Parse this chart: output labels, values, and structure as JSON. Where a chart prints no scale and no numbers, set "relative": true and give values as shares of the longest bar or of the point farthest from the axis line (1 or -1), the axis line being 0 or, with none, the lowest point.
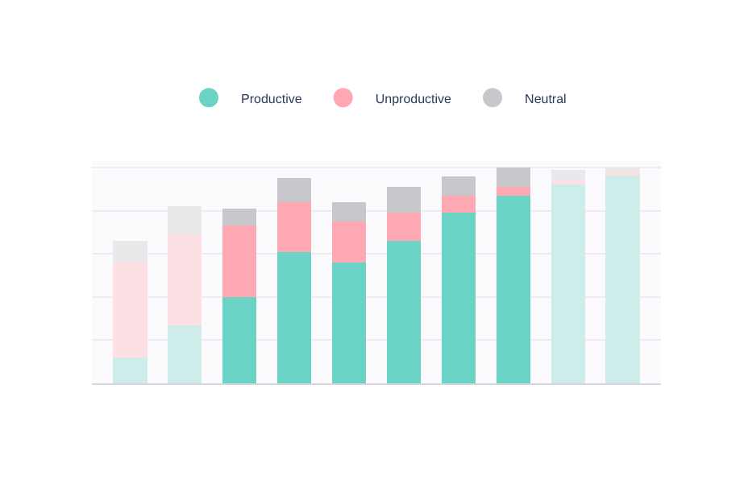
{
  "chart_data": {
    "type": "bar",
    "stacked": true,
    "relative": true,
    "grid": "y",
    "legend": "top",
    "categories": [
      null,
      null,
      null,
      null,
      null,
      null,
      null,
      null,
      null,
      null
    ],
    "series": [
      {
        "name": "Productive",
        "color": "#6bd2c6",
        "colors": [
          "#cdecea",
          "#cdecea",
          "#6bd2c6",
          "#6bd2c6",
          "#6bd2c6",
          "#6bd2c6",
          "#6bd2c6",
          "#6bd2c6",
          "#cdecea",
          "#cdecea"
        ],
        "values": [
          0.12,
          0.27,
          0.4,
          0.61,
          0.56,
          0.66,
          0.79,
          0.87,
          0.92,
          0.97
        ]
      },
      {
        "name": "Unproductive",
        "color": "#fda8b3",
        "colors": [
          "#fde0e4",
          "#fde0e4",
          "#fda8b3",
          "#fda8b3",
          "#fda8b3",
          "#fda8b3",
          "#fda8b3",
          "#fda8b3",
          "#fde0e4",
          "#fde0e4"
        ],
        "values": [
          0.44,
          0.42,
          0.33,
          0.23,
          0.19,
          0.13,
          0.08,
          0.04,
          0.02,
          0.01
        ]
      },
      {
        "name": "Neutral",
        "color": "#c8c7cc",
        "colors": [
          "#e9e8ea",
          "#e9e8ea",
          "#c8c7cc",
          "#c8c7cc",
          "#c8c7cc",
          "#c8c7cc",
          "#c8c7cc",
          "#c8c7cc",
          "#e9e8ea",
          "#e9e8ea"
        ],
        "values": [
          0.1,
          0.13,
          0.08,
          0.11,
          0.09,
          0.12,
          0.09,
          0.09,
          0.05,
          0.02
        ]
      }
    ]
  }
}
